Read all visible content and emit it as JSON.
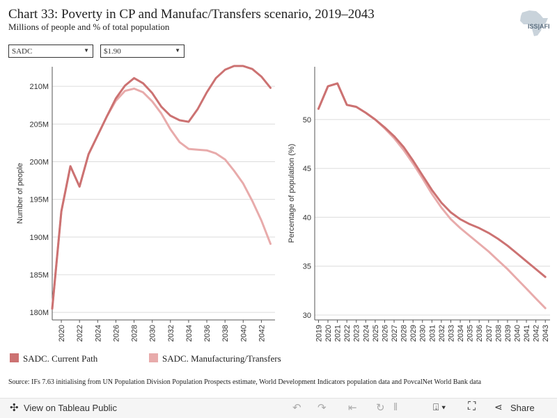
{
  "header": {
    "title": "Chart 33: Poverty in CP and Manufac/Transfers scenario, 2019–2043",
    "subtitle": "Millions of people and % of total population",
    "logo_text": "ISS|AFI"
  },
  "filters": {
    "region": "SADC",
    "poverty_line": "$1.90"
  },
  "colors": {
    "current_path": "#cc7272",
    "manufacturing_transfers": "#e8abab"
  },
  "legend": {
    "current_path": "SADC. Current Path",
    "manufacturing_transfers": "SADC. Manufacturing/Transfers"
  },
  "source": "Source: IFs 7.63 initialising from UN Population Division Population Prospects estimate, World Development Indicators population data and PovcalNet World Bank data",
  "footer": {
    "view_label": "View on Tableau Public",
    "share_label": "Share"
  },
  "chart_data": [
    {
      "type": "line",
      "ylabel": "Number of people",
      "ylim": [
        179,
        212.6
      ],
      "xlim": [
        2019,
        2043.5
      ],
      "yticks": [
        180,
        185,
        190,
        195,
        200,
        205,
        210
      ],
      "ytick_labels": [
        "180M",
        "185M",
        "190M",
        "195M",
        "200M",
        "205M",
        "210M"
      ],
      "xticks": [
        2020,
        2022,
        2024,
        2026,
        2028,
        2030,
        2032,
        2034,
        2036,
        2038,
        2040,
        2042
      ],
      "x": [
        2019,
        2020,
        2021,
        2022,
        2023,
        2024,
        2025,
        2026,
        2027,
        2028,
        2029,
        2030,
        2031,
        2032,
        2033,
        2034,
        2035,
        2036,
        2037,
        2038,
        2039,
        2040,
        2041,
        2042,
        2043
      ],
      "series": [
        {
          "name": "SADC. Current Path",
          "values": [
            180.5,
            193.4,
            199.4,
            196.7,
            201.0,
            203.5,
            206.0,
            208.4,
            210.1,
            211.1,
            210.4,
            209.1,
            207.3,
            206.1,
            205.5,
            205.3,
            207.0,
            209.2,
            211.1,
            212.2,
            212.7,
            212.7,
            212.3,
            211.3,
            209.8
          ]
        },
        {
          "name": "SADC. Manufacturing/Transfers",
          "values": [
            180.5,
            193.4,
            199.4,
            196.7,
            201.0,
            203.5,
            206.0,
            208.1,
            209.4,
            209.7,
            209.2,
            208.0,
            206.4,
            204.3,
            202.6,
            201.7,
            201.6,
            201.5,
            201.1,
            200.3,
            198.8,
            197.1,
            194.8,
            192.2,
            189.1
          ]
        }
      ]
    },
    {
      "type": "line",
      "ylabel": "Percentage of population (%)",
      "ylim": [
        29.5,
        55.4
      ],
      "xlim": [
        2018.6,
        2043.5
      ],
      "yticks": [
        30,
        35,
        40,
        45,
        50
      ],
      "ytick_labels": [
        "30",
        "35",
        "40",
        "45",
        "50"
      ],
      "xticks": [
        2019,
        2020,
        2021,
        2022,
        2023,
        2024,
        2025,
        2026,
        2027,
        2028,
        2029,
        2030,
        2031,
        2032,
        2033,
        2034,
        2035,
        2036,
        2037,
        2038,
        2039,
        2040,
        2041,
        2042,
        2043
      ],
      "x": [
        2019,
        2020,
        2021,
        2022,
        2023,
        2024,
        2025,
        2026,
        2027,
        2028,
        2029,
        2030,
        2031,
        2032,
        2033,
        2034,
        2035,
        2036,
        2037,
        2038,
        2039,
        2040,
        2041,
        2042,
        2043
      ],
      "series": [
        {
          "name": "SADC. Current Path",
          "values": [
            51.1,
            53.4,
            53.7,
            51.5,
            51.3,
            50.7,
            50.0,
            49.2,
            48.3,
            47.2,
            45.8,
            44.3,
            42.8,
            41.5,
            40.5,
            39.8,
            39.3,
            38.9,
            38.4,
            37.8,
            37.1,
            36.3,
            35.5,
            34.7,
            33.9
          ]
        },
        {
          "name": "SADC. Manufacturing/Transfers",
          "values": [
            51.1,
            53.4,
            53.7,
            51.5,
            51.3,
            50.7,
            50.0,
            49.1,
            48.1,
            46.9,
            45.5,
            44.0,
            42.4,
            41.0,
            39.8,
            38.9,
            38.1,
            37.3,
            36.5,
            35.6,
            34.7,
            33.7,
            32.7,
            31.7,
            30.7
          ]
        }
      ]
    }
  ]
}
